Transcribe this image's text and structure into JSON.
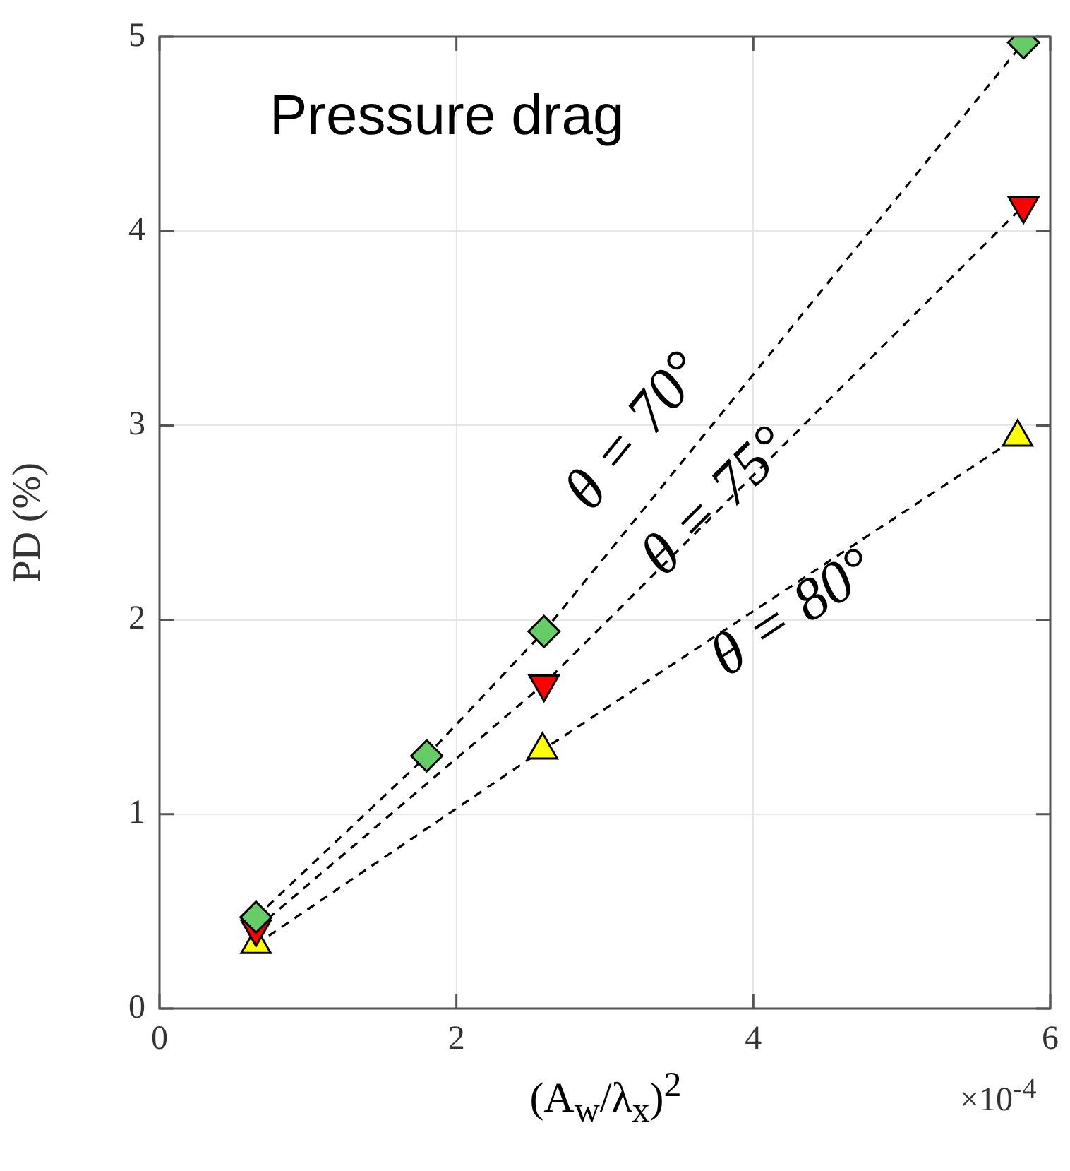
{
  "chart_data": {
    "type": "line",
    "title": "Pressure drag",
    "xlabel": "(A$_{w}$/λ$_{x}$)$^{2}$",
    "ylabel": "PD (%)",
    "annotations": [
      "×10$^{-4}$"
    ],
    "xlim": [
      0,
      6
    ],
    "xticks": [
      0,
      2,
      4,
      6
    ],
    "ylim": [
      0,
      5
    ],
    "yticks": [
      0,
      1,
      2,
      3,
      4,
      5
    ],
    "grid": true,
    "legend": false,
    "line_style": "dashed",
    "series": [
      {
        "name": "θ = 70°",
        "color": "#66cc66",
        "marker": "diamond",
        "x": [
          0.65,
          1.8,
          2.59,
          5.82
        ],
        "values": [
          0.47,
          1.3,
          1.94,
          4.97
        ]
      },
      {
        "name": "θ = 75°",
        "color": "#ff0000",
        "marker": "triangle_down",
        "x": [
          0.65,
          2.59,
          5.82
        ],
        "values": [
          0.41,
          1.67,
          4.13
        ]
      },
      {
        "name": "θ = 80°",
        "color": "#ffff00",
        "marker": "triangle",
        "x": [
          0.65,
          2.58,
          5.78
        ],
        "values": [
          0.33,
          1.33,
          2.94
        ]
      }
    ]
  }
}
